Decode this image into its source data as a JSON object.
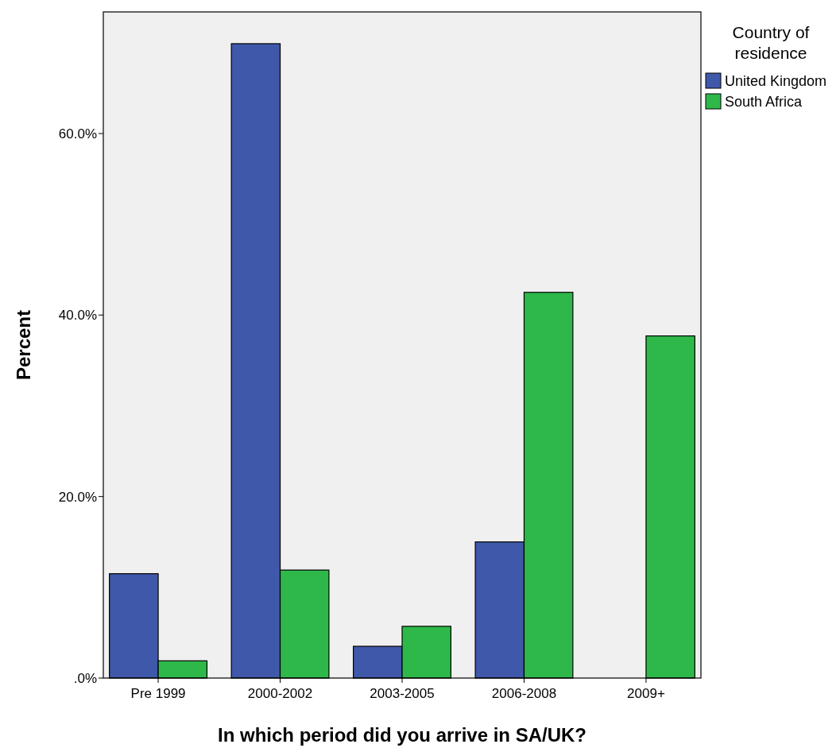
{
  "chart_data": {
    "type": "bar",
    "xlabel": "In which period did you arrive in SA/UK?",
    "ylabel": "Percent",
    "legend_title": "Country of residence",
    "categories": [
      "Pre 1999",
      "2000-2002",
      "2003-2005",
      "2006-2008",
      "2009+"
    ],
    "series": [
      {
        "name": "United Kingdom",
        "color": "#3f58a9",
        "values": [
          11.5,
          69.9,
          3.5,
          15.0,
          0
        ]
      },
      {
        "name": "South Africa",
        "color": "#2eb84a",
        "values": [
          1.9,
          11.9,
          5.7,
          42.5,
          37.7
        ]
      }
    ],
    "ylim": [
      0,
      73.4
    ],
    "yticks": [
      {
        "value": 0,
        "label": ".0%"
      },
      {
        "value": 20,
        "label": "20.0%"
      },
      {
        "value": 40,
        "label": "40.0%"
      },
      {
        "value": 60,
        "label": "60.0%"
      }
    ],
    "grid": false,
    "legend": "right"
  }
}
